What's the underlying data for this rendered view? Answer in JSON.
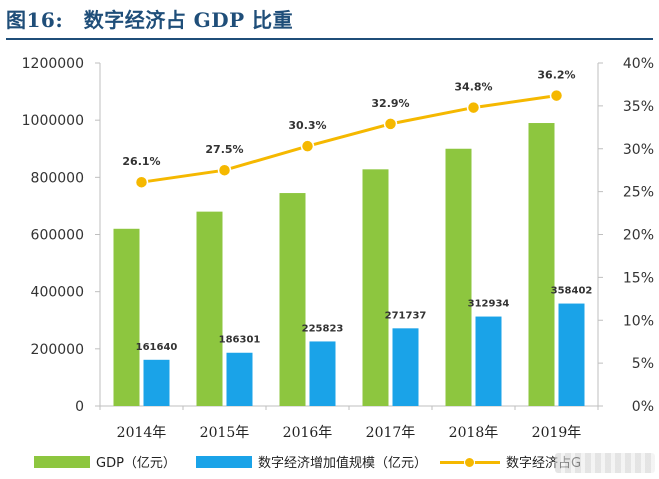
{
  "figure": {
    "title": "图16:　数字经济占 GDP 比重"
  },
  "legend": {
    "gdp": "GDP（亿元）",
    "digital": "数字经济增加值规模（亿元）",
    "share": "数字经济占G"
  },
  "colors": {
    "gdp_bar": "#8dc63f",
    "digital_bar": "#1aa3e8",
    "share_line": "#f5b800",
    "title": "#1f4e79"
  },
  "chart_data": {
    "type": "bar",
    "categories": [
      "2014年",
      "2015年",
      "2016年",
      "2017年",
      "2018年",
      "2019年"
    ],
    "series": [
      {
        "name": "GDP（亿元）",
        "type": "bar",
        "axis": "left",
        "values": [
          620000,
          680000,
          745000,
          828000,
          900000,
          990000
        ]
      },
      {
        "name": "数字经济增加值规模（亿元）",
        "type": "bar",
        "axis": "left",
        "values": [
          161640,
          186301,
          225823,
          271737,
          312934,
          358402
        ],
        "labels": [
          "161640",
          "186301",
          "225823",
          "271737",
          "312934",
          "358402"
        ]
      },
      {
        "name": "数字经济占G",
        "type": "line",
        "axis": "right",
        "values": [
          26.1,
          27.5,
          30.3,
          32.9,
          34.8,
          36.2
        ],
        "labels": [
          "26.1%",
          "27.5%",
          "30.3%",
          "32.9%",
          "34.8%",
          "36.2%"
        ]
      }
    ],
    "y_left": {
      "ylim": [
        0,
        1200000
      ],
      "ticks": [
        "0",
        "200000",
        "400000",
        "600000",
        "800000",
        "1000000",
        "1200000"
      ]
    },
    "y_right": {
      "ylim": [
        0,
        40
      ],
      "ticks": [
        "0%",
        "5%",
        "10%",
        "15%",
        "20%",
        "25%",
        "30%",
        "35%",
        "40%"
      ]
    },
    "grid": false,
    "legend_position": "bottom"
  }
}
